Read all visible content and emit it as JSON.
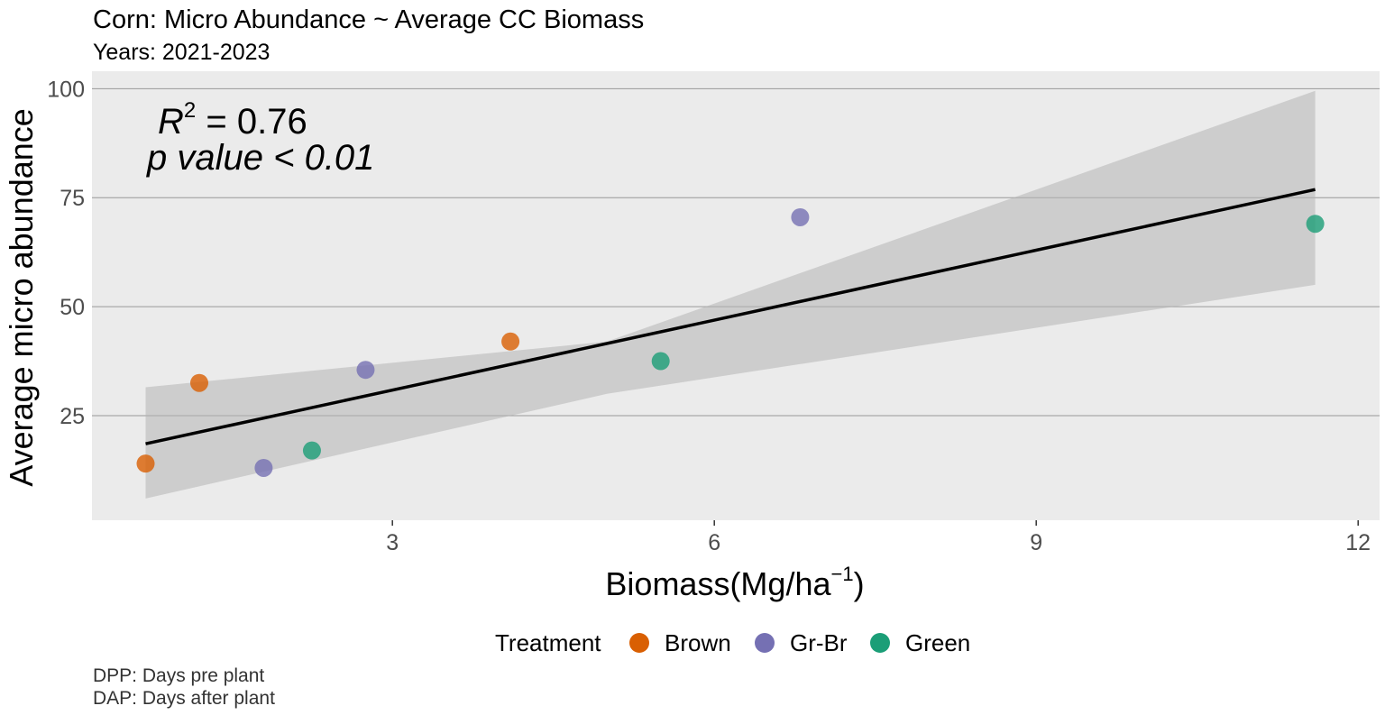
{
  "chart_data": {
    "type": "scatter",
    "title": "Corn: Micro Abundance ~ Average CC Biomass",
    "subtitle": "Years: 2021-2023",
    "xlabel": "Biomass(Mg/ha",
    "xlabel_superscript": "−1",
    "xlabel_close": ")",
    "ylabel": "Average micro abundance",
    "xlim": [
      0.2,
      12.2
    ],
    "ylim": [
      1,
      104
    ],
    "x_ticks": [
      3,
      6,
      9,
      12
    ],
    "y_ticks": [
      25,
      50,
      75,
      100
    ],
    "grid": true,
    "annotation": {
      "r2_label": "R",
      "r2_exp": "2",
      "r2_value": " = 0.76",
      "p_text": "p value < 0.01"
    },
    "fit": {
      "type": "linear",
      "x_range": [
        0.7,
        11.6
      ],
      "slope": 5.35,
      "intercept": 14.8,
      "ci_lower": [
        [
          0.7,
          6.0
        ],
        [
          5.0,
          30.0
        ],
        [
          11.6,
          55.0
        ]
      ],
      "ci_upper": [
        [
          0.7,
          31.5
        ],
        [
          5.0,
          42.0
        ],
        [
          11.6,
          99.5
        ]
      ]
    },
    "series": [
      {
        "name": "Brown",
        "color": "#d95f02",
        "x": [
          0.7,
          1.2,
          4.1
        ],
        "y": [
          14,
          32.5,
          42
        ]
      },
      {
        "name": "Gr-Br",
        "color": "#7570b3",
        "x": [
          1.8,
          2.75,
          6.8
        ],
        "y": [
          13,
          35.5,
          70.5
        ]
      },
      {
        "name": "Green",
        "color": "#1b9e77",
        "x": [
          2.25,
          5.5,
          11.6
        ],
        "y": [
          17,
          37.5,
          69
        ]
      }
    ],
    "legend": {
      "title": "Treatment",
      "position": "bottom"
    }
  },
  "caption": {
    "line1": "DPP: Days pre plant",
    "line2": "DAP: Days after plant"
  }
}
